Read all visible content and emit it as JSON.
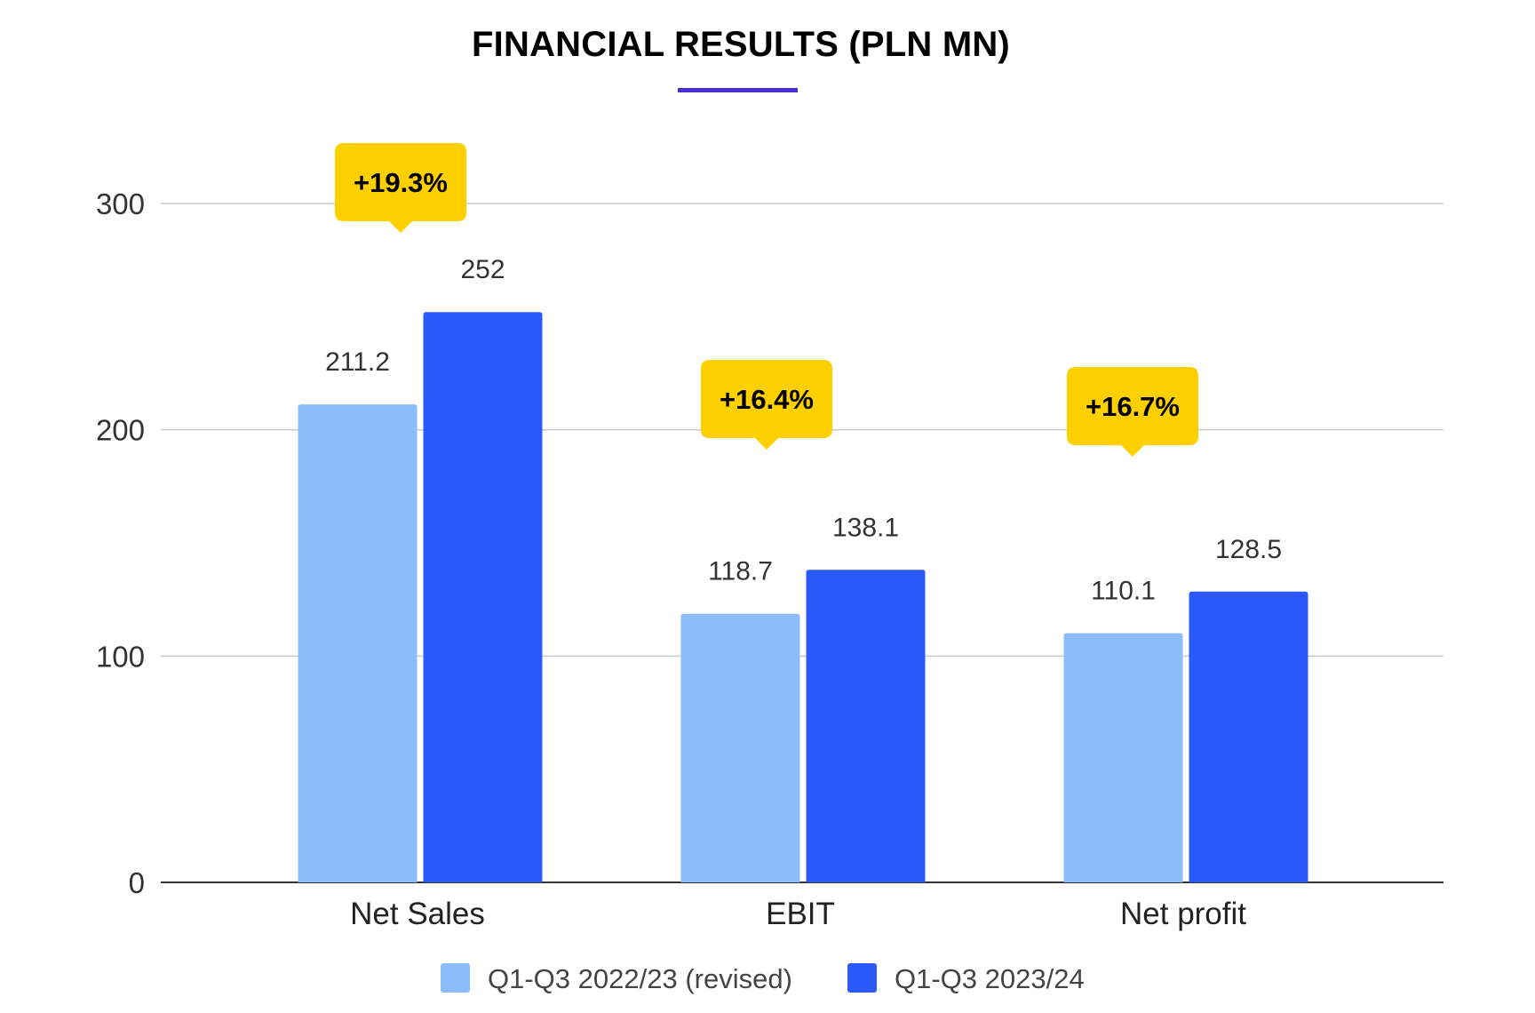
{
  "chart_data": {
    "type": "bar",
    "title": "FINANCIAL RESULTS (PLN MN)",
    "categories": [
      "Net Sales",
      "EBIT",
      "Net profit"
    ],
    "series": [
      {
        "name": "Q1-Q3 2022/23 (revised)",
        "values": [
          211.2,
          118.7,
          110.1
        ],
        "labels": [
          "211.2",
          "118.7",
          "110.1"
        ],
        "color": "#8abdf9"
      },
      {
        "name": "Q1-Q3 2023/24",
        "values": [
          252,
          138.1,
          128.5
        ],
        "labels": [
          "252",
          "138.1",
          "128.5"
        ],
        "color": "#2c5afa"
      }
    ],
    "annotations": [
      "+19.3%",
      "+16.4%",
      "+16.7%"
    ],
    "annotation_color": "#ffd000",
    "ylim": [
      0,
      300
    ],
    "yticks": [
      0,
      100,
      200,
      300
    ],
    "xlabel": "",
    "ylabel": "",
    "grid": true,
    "legend": "bottom",
    "accent_color": "#4b2ecf"
  }
}
